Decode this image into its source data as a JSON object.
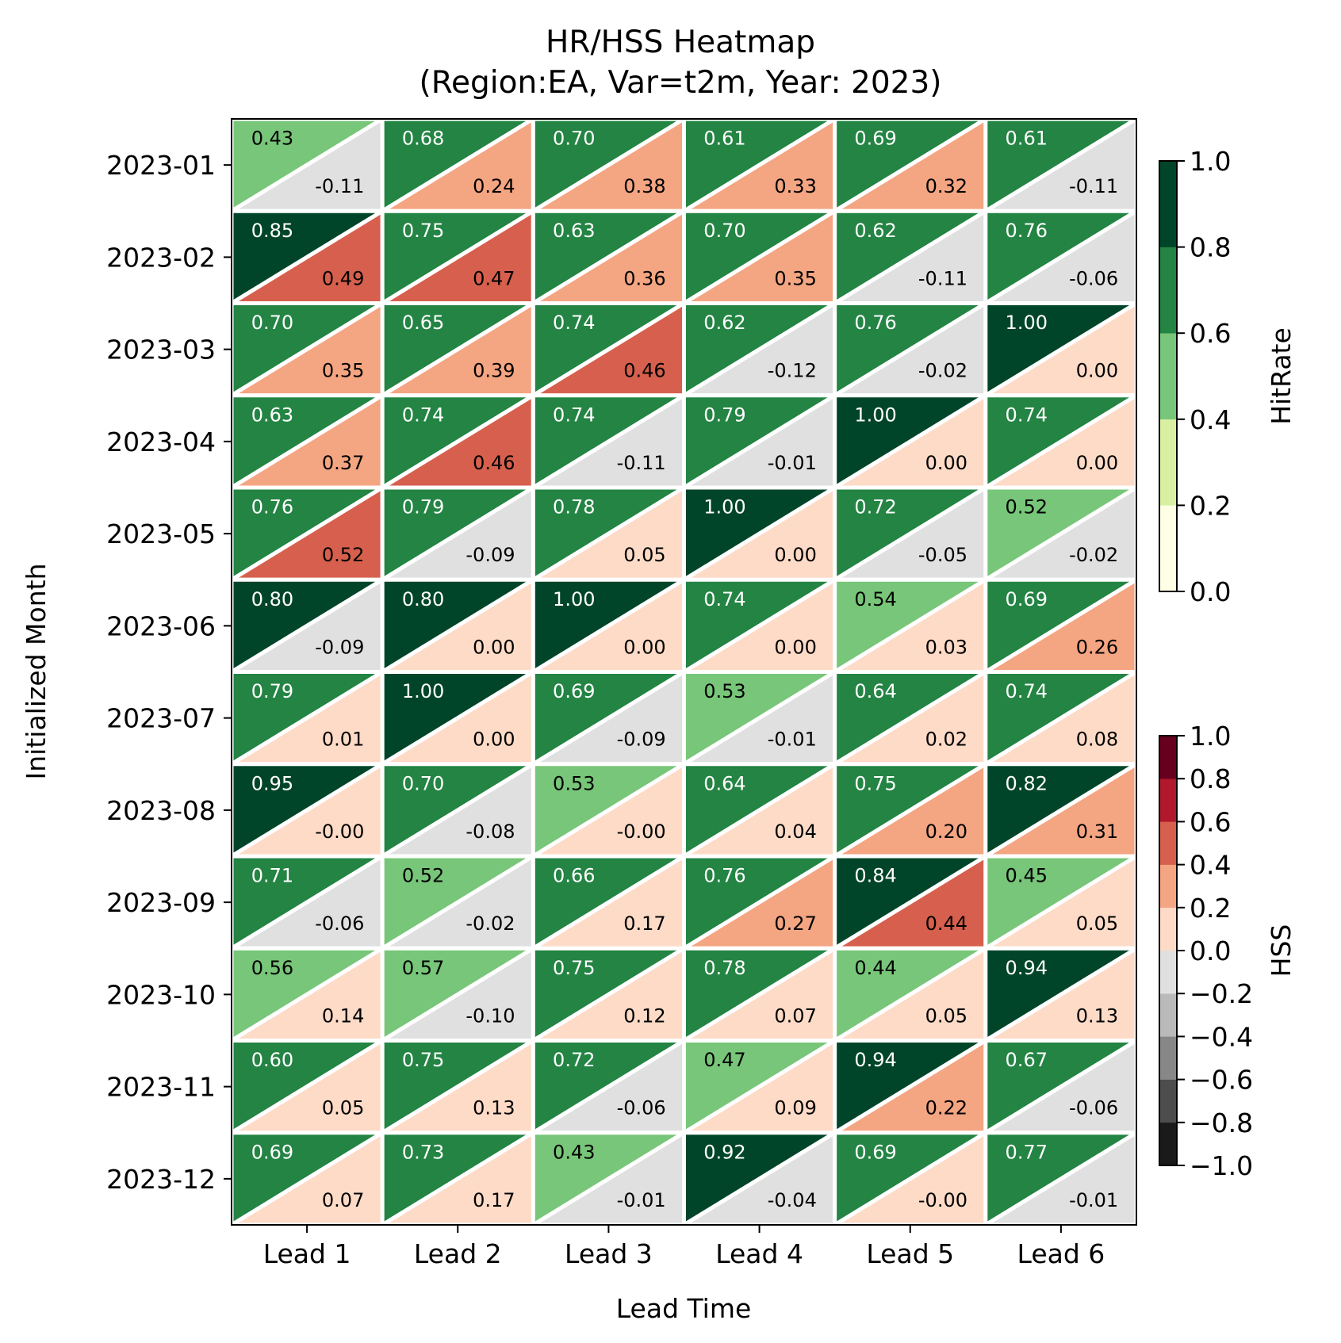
{
  "chart_data": {
    "type": "heatmap",
    "title": "HR/HSS Heatmap",
    "subtitle": "(Region:EA, Var=t2m, Year: 2023)",
    "xlabel": "Lead Time",
    "ylabel": "Initialized Month",
    "x": [
      "Lead 1",
      "Lead 2",
      "Lead 3",
      "Lead 4",
      "Lead 5",
      "Lead 6"
    ],
    "y": [
      "2023-01",
      "2023-02",
      "2023-03",
      "2023-04",
      "2023-05",
      "2023-06",
      "2023-07",
      "2023-08",
      "2023-09",
      "2023-10",
      "2023-11",
      "2023-12"
    ],
    "series": [
      {
        "name": "HitRate",
        "cell_part": "upper-left triangle",
        "values": [
          [
            0.43,
            0.68,
            0.7,
            0.61,
            0.69,
            0.61
          ],
          [
            0.85,
            0.75,
            0.63,
            0.7,
            0.62,
            0.76
          ],
          [
            0.7,
            0.65,
            0.74,
            0.62,
            0.76,
            1.0
          ],
          [
            0.63,
            0.74,
            0.74,
            0.79,
            1.0,
            0.74
          ],
          [
            0.76,
            0.79,
            0.78,
            1.0,
            0.72,
            0.52
          ],
          [
            0.8,
            0.8,
            1.0,
            0.74,
            0.54,
            0.69
          ],
          [
            0.79,
            1.0,
            0.69,
            0.53,
            0.64,
            0.74
          ],
          [
            0.95,
            0.7,
            0.53,
            0.64,
            0.75,
            0.82
          ],
          [
            0.71,
            0.52,
            0.66,
            0.76,
            0.84,
            0.45
          ],
          [
            0.56,
            0.57,
            0.75,
            0.78,
            0.44,
            0.94
          ],
          [
            0.6,
            0.75,
            0.72,
            0.47,
            0.94,
            0.67
          ],
          [
            0.69,
            0.73,
            0.43,
            0.92,
            0.69,
            0.77
          ]
        ],
        "labels": [
          [
            "0.43",
            "0.68",
            "0.70",
            "0.61",
            "0.69",
            "0.61"
          ],
          [
            "0.85",
            "0.75",
            "0.63",
            "0.70",
            "0.62",
            "0.76"
          ],
          [
            "0.70",
            "0.65",
            "0.74",
            "0.62",
            "0.76",
            "1.00"
          ],
          [
            "0.63",
            "0.74",
            "0.74",
            "0.79",
            "1.00",
            "0.74"
          ],
          [
            "0.76",
            "0.79",
            "0.78",
            "1.00",
            "0.72",
            "0.52"
          ],
          [
            "0.80",
            "0.80",
            "1.00",
            "0.74",
            "0.54",
            "0.69"
          ],
          [
            "0.79",
            "1.00",
            "0.69",
            "0.53",
            "0.64",
            "0.74"
          ],
          [
            "0.95",
            "0.70",
            "0.53",
            "0.64",
            "0.75",
            "0.82"
          ],
          [
            "0.71",
            "0.52",
            "0.66",
            "0.76",
            "0.84",
            "0.45"
          ],
          [
            "0.56",
            "0.57",
            "0.75",
            "0.78",
            "0.44",
            "0.94"
          ],
          [
            "0.60",
            "0.75",
            "0.72",
            "0.47",
            "0.94",
            "0.67"
          ],
          [
            "0.69",
            "0.73",
            "0.43",
            "0.92",
            "0.69",
            "0.77"
          ]
        ]
      },
      {
        "name": "HSS",
        "cell_part": "lower-right triangle",
        "values": [
          [
            -0.11,
            0.24,
            0.38,
            0.33,
            0.32,
            -0.11
          ],
          [
            0.49,
            0.47,
            0.36,
            0.35,
            -0.11,
            -0.06
          ],
          [
            0.35,
            0.39,
            0.46,
            -0.12,
            -0.02,
            0.0
          ],
          [
            0.37,
            0.46,
            -0.11,
            -0.01,
            0.0,
            0.0
          ],
          [
            0.52,
            -0.09,
            0.05,
            0.0,
            -0.05,
            -0.02
          ],
          [
            -0.09,
            0.0,
            0.0,
            0.0,
            0.03,
            0.26
          ],
          [
            0.01,
            0.0,
            -0.09,
            -0.01,
            0.02,
            0.08
          ],
          [
            -0.0,
            -0.08,
            -0.0,
            0.04,
            0.2,
            0.31
          ],
          [
            -0.06,
            -0.02,
            0.17,
            0.27,
            0.44,
            0.05
          ],
          [
            0.14,
            -0.1,
            0.12,
            0.07,
            0.05,
            0.13
          ],
          [
            0.05,
            0.13,
            -0.06,
            0.09,
            0.22,
            -0.06
          ],
          [
            0.07,
            0.17,
            -0.01,
            -0.04,
            -0.0,
            -0.01
          ]
        ],
        "labels": [
          [
            "-0.11",
            "0.24",
            "0.38",
            "0.33",
            "0.32",
            "-0.11"
          ],
          [
            "0.49",
            "0.47",
            "0.36",
            "0.35",
            "-0.11",
            "-0.06"
          ],
          [
            "0.35",
            "0.39",
            "0.46",
            "-0.12",
            "-0.02",
            "0.00"
          ],
          [
            "0.37",
            "0.46",
            "-0.11",
            "-0.01",
            "0.00",
            "0.00"
          ],
          [
            "0.52",
            "-0.09",
            "0.05",
            "0.00",
            "-0.05",
            "-0.02"
          ],
          [
            "-0.09",
            "0.00",
            "0.00",
            "0.00",
            "0.03",
            "0.26"
          ],
          [
            "0.01",
            "0.00",
            "-0.09",
            "-0.01",
            "0.02",
            "0.08"
          ],
          [
            "-0.00",
            "-0.08",
            "-0.00",
            "0.04",
            "0.20",
            "0.31"
          ],
          [
            "-0.06",
            "-0.02",
            "0.17",
            "0.27",
            "0.44",
            "0.05"
          ],
          [
            "0.14",
            "-0.10",
            "0.12",
            "0.07",
            "0.05",
            "0.13"
          ],
          [
            "0.05",
            "0.13",
            "-0.06",
            "0.09",
            "0.22",
            "-0.06"
          ],
          [
            "0.07",
            "0.17",
            "-0.01",
            "-0.04",
            "-0.00",
            "-0.01"
          ]
        ]
      }
    ],
    "colorbars": [
      {
        "label": "HitRate",
        "range": [
          0,
          1
        ],
        "ticks": [
          "0.0",
          "0.2",
          "0.4",
          "0.6",
          "0.8",
          "1.0"
        ],
        "bins": [
          {
            "min": 0.0,
            "max": 0.2,
            "color": "#ffffe5"
          },
          {
            "min": 0.2,
            "max": 0.4,
            "color": "#d9f0a3"
          },
          {
            "min": 0.4,
            "max": 0.6,
            "color": "#78c679"
          },
          {
            "min": 0.6,
            "max": 0.8,
            "color": "#238443"
          },
          {
            "min": 0.8,
            "max": 1.0,
            "color": "#004529"
          }
        ]
      },
      {
        "label": "HSS",
        "range": [
          -1,
          1
        ],
        "ticks": [
          "−1.0",
          "−0.8",
          "−0.6",
          "−0.4",
          "−0.2",
          "0.0",
          "0.2",
          "0.4",
          "0.6",
          "0.8",
          "1.0"
        ],
        "bins": [
          {
            "min": -1.0,
            "max": -0.8,
            "color": "#1a1a1a"
          },
          {
            "min": -0.8,
            "max": -0.6,
            "color": "#4d4d4d"
          },
          {
            "min": -0.6,
            "max": -0.4,
            "color": "#878787"
          },
          {
            "min": -0.4,
            "max": -0.2,
            "color": "#bababa"
          },
          {
            "min": -0.2,
            "max": 0.0,
            "color": "#e0e0e0"
          },
          {
            "min": 0.0,
            "max": 0.2,
            "color": "#fddbc7"
          },
          {
            "min": 0.2,
            "max": 0.4,
            "color": "#f4a582"
          },
          {
            "min": 0.4,
            "max": 0.6,
            "color": "#d6604d"
          },
          {
            "min": 0.6,
            "max": 0.8,
            "color": "#b2182b"
          },
          {
            "min": 0.8,
            "max": 1.0,
            "color": "#67001f"
          }
        ]
      }
    ],
    "grid": false,
    "legend": "right"
  }
}
